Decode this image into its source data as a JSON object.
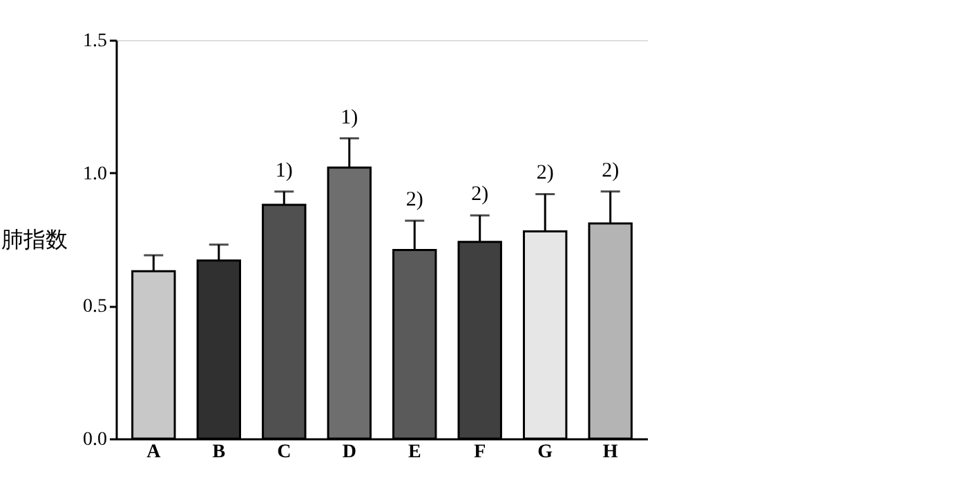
{
  "chart_data": {
    "type": "bar",
    "ylabel": "肺指数",
    "categories": [
      "A",
      "B",
      "C",
      "D",
      "E",
      "F",
      "G",
      "H"
    ],
    "values": [
      0.63,
      0.67,
      0.88,
      1.02,
      0.71,
      0.74,
      0.78,
      0.81
    ],
    "colors": [
      "#c8c8c8",
      "#303030",
      "#505050",
      "#6e6e6e",
      "#5a5a5a",
      "#404040",
      "#e6e6e6",
      "#b4b4b4"
    ],
    "errors": [
      [
        0.63,
        0.69
      ],
      [
        0.67,
        0.73
      ],
      [
        0.88,
        0.93
      ],
      [
        1.02,
        1.13
      ],
      [
        0.71,
        0.82
      ],
      [
        0.74,
        0.84
      ],
      [
        0.78,
        0.92
      ],
      [
        0.81,
        0.93
      ]
    ],
    "ylim": [
      0,
      1.5
    ],
    "yticks": [
      {
        "value": 0,
        "label": "0.0"
      },
      {
        "value": 0.5,
        "label": "0.5"
      },
      {
        "value": 1,
        "label": "1.0"
      },
      {
        "value": 1.5,
        "label": "1.5"
      }
    ],
    "annotations": [
      {
        "text": "1)",
        "x": "C",
        "y": 0.93
      },
      {
        "text": "1)",
        "x": "D",
        "y": 1.13
      },
      {
        "text": "2)",
        "x": "E",
        "y": 0.82
      },
      {
        "text": "2)",
        "x": "F",
        "y": 0.84
      },
      {
        "text": "2)",
        "x": "G",
        "y": 0.92
      },
      {
        "text": "2)",
        "x": "H",
        "y": 0.93
      }
    ],
    "grid": false,
    "legend": false
  }
}
